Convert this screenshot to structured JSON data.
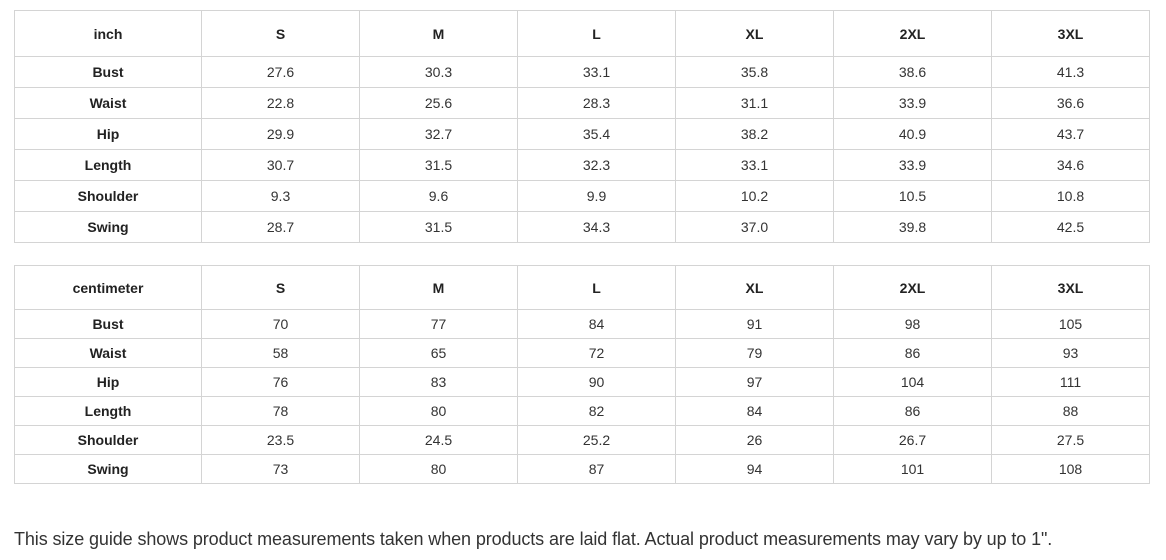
{
  "tables": [
    {
      "unit": "inch",
      "sizes": [
        "S",
        "M",
        "L",
        "XL",
        "2XL",
        "3XL"
      ],
      "rows": [
        {
          "label": "Bust",
          "values": [
            "27.6",
            "30.3",
            "33.1",
            "35.8",
            "38.6",
            "41.3"
          ]
        },
        {
          "label": "Waist",
          "values": [
            "22.8",
            "25.6",
            "28.3",
            "31.1",
            "33.9",
            "36.6"
          ]
        },
        {
          "label": "Hip",
          "values": [
            "29.9",
            "32.7",
            "35.4",
            "38.2",
            "40.9",
            "43.7"
          ]
        },
        {
          "label": "Length",
          "values": [
            "30.7",
            "31.5",
            "32.3",
            "33.1",
            "33.9",
            "34.6"
          ]
        },
        {
          "label": "Shoulder",
          "values": [
            "9.3",
            "9.6",
            "9.9",
            "10.2",
            "10.5",
            "10.8"
          ]
        },
        {
          "label": "Swing",
          "values": [
            "28.7",
            "31.5",
            "34.3",
            "37.0",
            "39.8",
            "42.5"
          ]
        }
      ]
    },
    {
      "unit": "centimeter",
      "sizes": [
        "S",
        "M",
        "L",
        "XL",
        "2XL",
        "3XL"
      ],
      "rows": [
        {
          "label": "Bust",
          "values": [
            "70",
            "77",
            "84",
            "91",
            "98",
            "105"
          ]
        },
        {
          "label": "Waist",
          "values": [
            "58",
            "65",
            "72",
            "79",
            "86",
            "93"
          ]
        },
        {
          "label": "Hip",
          "values": [
            "76",
            "83",
            "90",
            "97",
            "104",
            "111"
          ]
        },
        {
          "label": "Length",
          "values": [
            "78",
            "80",
            "82",
            "84",
            "86",
            "88"
          ]
        },
        {
          "label": "Shoulder",
          "values": [
            "23.5",
            "24.5",
            "25.2",
            "26",
            "26.7",
            "27.5"
          ]
        },
        {
          "label": "Swing",
          "values": [
            "73",
            "80",
            "87",
            "94",
            "101",
            "108"
          ]
        }
      ]
    }
  ],
  "note": "This size guide shows product measurements taken when products are laid flat. Actual product measurements may vary by up to 1\"."
}
